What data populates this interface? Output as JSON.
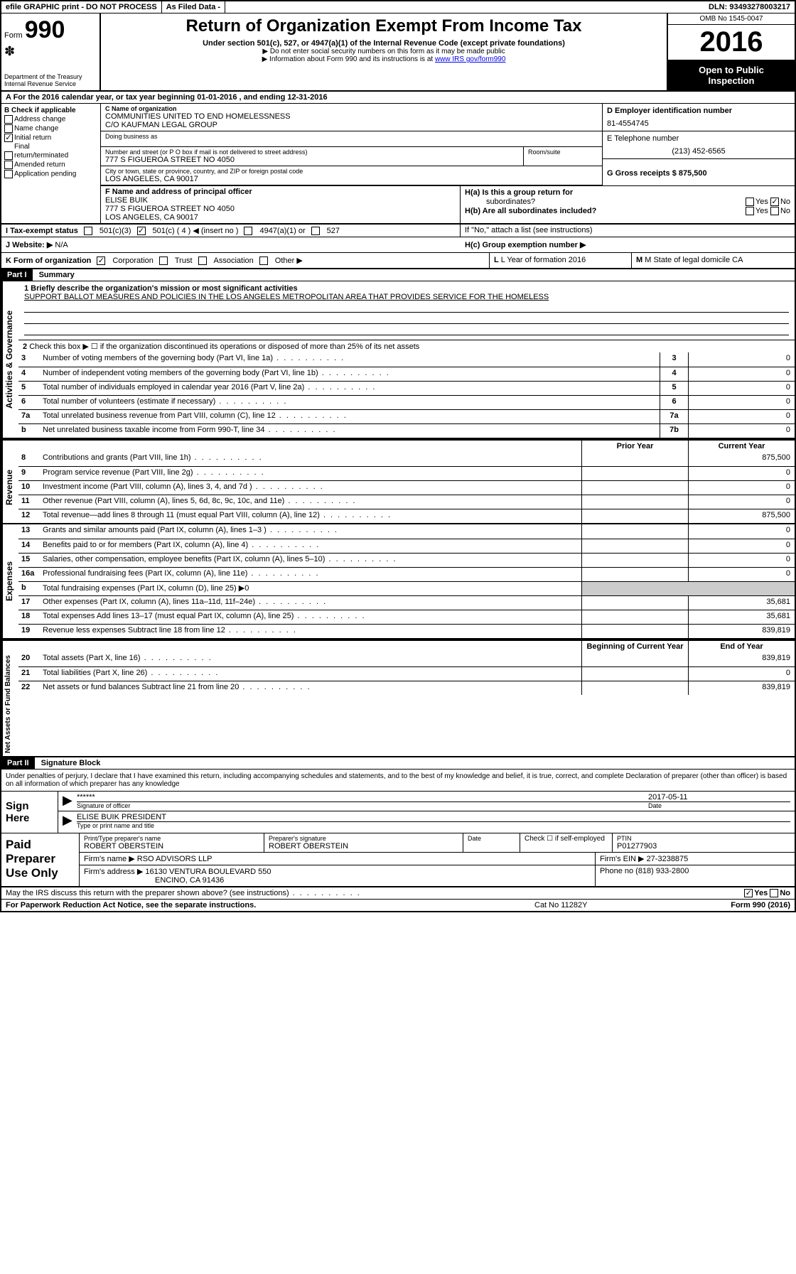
{
  "banner": {
    "efile": "efile GRAPHIC print - DO NOT PROCESS",
    "asfiled": "As Filed Data -",
    "dln": "DLN: 93493278003217"
  },
  "header": {
    "form_label": "Form",
    "form_number": "990",
    "dept1": "Department of the Treasury",
    "dept2": "Internal Revenue Service",
    "title": "Return of Organization Exempt From Income Tax",
    "section": "Under section 501(c), 527, or 4947(a)(1) of the Internal Revenue Code (except private foundations)",
    "arrow1": "▶ Do not enter social security numbers on this form as it may be made public",
    "arrow2_pre": "▶ Information about Form 990 and its instructions is at ",
    "arrow2_link": "www IRS gov/form990",
    "omb": "OMB No 1545-0047",
    "year": "2016",
    "open1": "Open to Public",
    "open2": "Inspection"
  },
  "rowA": "A  For the 2016 calendar year, or tax year beginning 01-01-2016   , and ending 12-31-2016",
  "blockB": {
    "title": "B Check if applicable",
    "addr_change": "Address change",
    "name_change": "Name change",
    "initial_return": "Initial return",
    "final": "Final",
    "return_term": "return/terminated",
    "amended": "Amended return",
    "app_pending": "Application pending"
  },
  "blockC": {
    "label": "C Name of organization",
    "name": "COMMUNITIES UNITED TO END HOMELESSNESS",
    "co": "C/O KAUFMAN LEGAL GROUP",
    "dba_label": "Doing business as",
    "addr_label": "Number and street (or P O  box if mail is not delivered to street address)",
    "addr": "777 S FIGUEROA STREET NO 4050",
    "room_label": "Room/suite",
    "city_label": "City or town, state or province, country, and ZIP or foreign postal code",
    "city": "LOS ANGELES, CA  90017"
  },
  "blockD": {
    "label": "D Employer identification number",
    "value": "81-4554745"
  },
  "blockE": {
    "label": "E Telephone number",
    "value": "(213) 452-6565"
  },
  "blockG": {
    "label": "G Gross receipts $ 875,500"
  },
  "blockF": {
    "label": "F  Name and address of principal officer",
    "name": "ELISE BUIK",
    "addr": "777 S FIGUEROA STREET NO 4050",
    "city": "LOS ANGELES, CA  90017"
  },
  "blockH": {
    "ha": "H(a)  Is this a group return for",
    "ha2": "subordinates?",
    "hb": "H(b) Are all subordinates included?",
    "hnote": "If \"No,\" attach a list  (see instructions)",
    "hc": "H(c)  Group exemption number ▶",
    "yes": "Yes",
    "no": "No"
  },
  "rowI": {
    "label": "I  Tax-exempt status",
    "c3": "501(c)(3)",
    "c4": "501(c) ( 4 ) ◀ (insert no )",
    "a4947": "4947(a)(1) or",
    "s527": "527"
  },
  "rowJ": {
    "label": "J  Website: ▶",
    "value": "N/A"
  },
  "rowK": {
    "label": "K Form of organization",
    "corp": "Corporation",
    "trust": "Trust",
    "assoc": "Association",
    "other": "Other ▶"
  },
  "rowL": {
    "label": "L Year of formation  2016"
  },
  "rowM": {
    "label": "M State of legal domicile  CA"
  },
  "partI": {
    "label": "Part I",
    "title": "Summary"
  },
  "summary": {
    "line1_label": "1  Briefly describe the organization's mission or most significant activities",
    "mission": "SUPPORT BALLOT MEASURES AND POLICIES IN THE LOS ANGELES METROPOLITAN AREA THAT PROVIDES SERVICE FOR THE HOMELESS",
    "line2": "Check this box ▶ ☐  if the organization discontinued its operations or disposed of more than 25% of its net assets",
    "lines_gov": [
      {
        "n": "3",
        "d": "Number of voting members of the governing body (Part VI, line 1a)",
        "box": "3",
        "v": "0"
      },
      {
        "n": "4",
        "d": "Number of independent voting members of the governing body (Part VI, line 1b)",
        "box": "4",
        "v": "0"
      },
      {
        "n": "5",
        "d": "Total number of individuals employed in calendar year 2016 (Part V, line 2a)",
        "box": "5",
        "v": "0"
      },
      {
        "n": "6",
        "d": "Total number of volunteers (estimate if necessary)",
        "box": "6",
        "v": "0"
      },
      {
        "n": "7a",
        "d": "Total unrelated business revenue from Part VIII, column (C), line 12",
        "box": "7a",
        "v": "0"
      },
      {
        "n": "b",
        "d": "Net unrelated business taxable income from Form 990-T, line 34",
        "box": "7b",
        "v": "0"
      }
    ],
    "prior_year": "Prior Year",
    "current_year": "Current Year",
    "lines_rev": [
      {
        "n": "8",
        "d": "Contributions and grants (Part VIII, line 1h)",
        "p": "",
        "c": "875,500"
      },
      {
        "n": "9",
        "d": "Program service revenue (Part VIII, line 2g)",
        "p": "",
        "c": "0"
      },
      {
        "n": "10",
        "d": "Investment income (Part VIII, column (A), lines 3, 4, and 7d )",
        "p": "",
        "c": "0"
      },
      {
        "n": "11",
        "d": "Other revenue (Part VIII, column (A), lines 5, 6d, 8c, 9c, 10c, and 11e)",
        "p": "",
        "c": "0"
      },
      {
        "n": "12",
        "d": "Total revenue—add lines 8 through 11 (must equal Part VIII, column (A), line 12)",
        "p": "",
        "c": "875,500"
      }
    ],
    "lines_exp": [
      {
        "n": "13",
        "d": "Grants and similar amounts paid (Part IX, column (A), lines 1–3 )",
        "p": "",
        "c": "0"
      },
      {
        "n": "14",
        "d": "Benefits paid to or for members (Part IX, column (A), line 4)",
        "p": "",
        "c": "0"
      },
      {
        "n": "15",
        "d": "Salaries, other compensation, employee benefits (Part IX, column (A), lines 5–10)",
        "p": "",
        "c": "0"
      },
      {
        "n": "16a",
        "d": "Professional fundraising fees (Part IX, column (A), line 11e)",
        "p": "",
        "c": "0"
      },
      {
        "n": "b",
        "d": "Total fundraising expenses (Part IX, column (D), line 25) ▶0",
        "p": "—",
        "c": "—"
      },
      {
        "n": "17",
        "d": "Other expenses (Part IX, column (A), lines 11a–11d, 11f–24e)",
        "p": "",
        "c": "35,681"
      },
      {
        "n": "18",
        "d": "Total expenses  Add lines 13–17 (must equal Part IX, column (A), line 25)",
        "p": "",
        "c": "35,681"
      },
      {
        "n": "19",
        "d": "Revenue less expenses  Subtract line 18 from line 12",
        "p": "",
        "c": "839,819"
      }
    ],
    "boy": "Beginning of Current Year",
    "eoy": "End of Year",
    "lines_net": [
      {
        "n": "20",
        "d": "Total assets (Part X, line 16)",
        "p": "",
        "c": "839,819"
      },
      {
        "n": "21",
        "d": "Total liabilities (Part X, line 26)",
        "p": "",
        "c": "0"
      },
      {
        "n": "22",
        "d": "Net assets or fund balances  Subtract line 21 from line 20",
        "p": "",
        "c": "839,819"
      }
    ],
    "side_gov": "Activities & Governance",
    "side_rev": "Revenue",
    "side_exp": "Expenses",
    "side_net": "Net Assets or Fund Balances"
  },
  "partII": {
    "label": "Part II",
    "title": "Signature Block"
  },
  "sig": {
    "perjury": "Under penalties of perjury, I declare that I have examined this return, including accompanying schedules and statements, and to the best of my knowledge and belief, it is true, correct, and complete  Declaration of preparer (other than officer) is based on all information of which preparer has any knowledge",
    "sign_here": "Sign Here",
    "stars": "******",
    "sig_officer": "Signature of officer",
    "date": "2017-05-11",
    "date_label": "Date",
    "name_title": "ELISE BUIK  PRESIDENT",
    "type_label": "Type or print name and title"
  },
  "paid": {
    "label": "Paid Preparer Use Only",
    "print_label": "Print/Type preparer's name",
    "print_name": "ROBERT OBERSTEIN",
    "sig_label": "Preparer's signature",
    "sig_name": "ROBERT OBERSTEIN",
    "date_label": "Date",
    "check_label": "Check ☐ if self-employed",
    "ptin_label": "PTIN",
    "ptin": "P01277903",
    "firm_name_label": "Firm's name    ▶",
    "firm_name": "RSO ADVISORS LLP",
    "firm_ein_label": "Firm's EIN ▶",
    "firm_ein": "27-3238875",
    "firm_addr_label": "Firm's address ▶",
    "firm_addr": "16130 VENTURA BOULEVARD 550",
    "firm_city": "ENCINO, CA  91436",
    "phone_label": "Phone no  (818) 933-2800"
  },
  "discuss": {
    "text": "May the IRS discuss this return with the preparer shown above? (see instructions)",
    "yes": "Yes",
    "no": "No"
  },
  "footer": {
    "left": "For Paperwork Reduction Act Notice, see the separate instructions.",
    "mid": "Cat  No  11282Y",
    "right": "Form 990 (2016)"
  }
}
